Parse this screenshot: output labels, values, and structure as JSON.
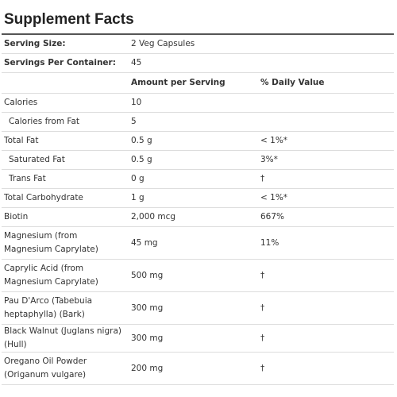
{
  "title": "Supplement Facts",
  "serving_size": {
    "label": "Serving Size:",
    "value": "2 Veg Capsules"
  },
  "servings_per_container": {
    "label": "Servings Per Container:",
    "value": "45"
  },
  "header": [
    "Amount per Serving",
    "% Daily Value"
  ],
  "rows": [
    [
      "Calories",
      "10",
      ""
    ],
    [
      "Calories from Fat",
      "5",
      ""
    ],
    [
      "Total Fat",
      "0.5 g",
      "< 1%*"
    ],
    [
      "Saturated Fat",
      "0.5 g",
      "3%*"
    ],
    [
      "Trans Fat",
      "0 g",
      "†"
    ],
    [
      "Total Carbohydrate",
      "1 g",
      "< 1%*"
    ],
    [
      "Biotin",
      "2,000 mcg",
      "667%"
    ],
    [
      "Magnesium (from Magnesium Caprylate)",
      "45 mg",
      "11%"
    ],
    [
      "Caprylic Acid (from Magnesium Caprylate)",
      "500 mg",
      "†"
    ],
    [
      "Pau D'Arco (Tabebuia heptaphylla) (Bark)",
      "300 mg",
      "†"
    ],
    [
      "Black Walnut (Juglans nigra) (Hull)",
      "300 mg",
      "†"
    ],
    [
      "Oregano Oil Powder (Origanum vulgare)",
      "200 mg",
      "†"
    ]
  ]
}
